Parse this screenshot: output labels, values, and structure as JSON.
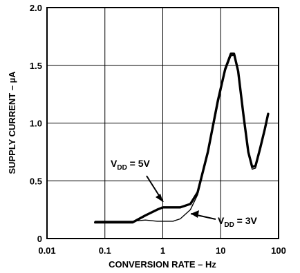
{
  "chart_data": {
    "type": "line",
    "xlabel": "CONVERSION RATE – Hz",
    "ylabel": "SUPPLY CURRENT – µA",
    "xscale": "log",
    "xlim": [
      0.01,
      100
    ],
    "ylim": [
      0,
      2.0
    ],
    "xticks": [
      "0.01",
      "0.1",
      "1",
      "10",
      "100"
    ],
    "yticks": [
      "0",
      "0.5",
      "1.0",
      "1.5",
      "2.0"
    ],
    "grid": true,
    "series": [
      {
        "name": "VDD = 5V",
        "x": [
          0.068,
          0.15,
          0.3,
          0.5,
          0.8,
          1.0,
          1.5,
          2.0,
          3.0,
          4.0,
          6.0,
          9.0,
          12.0,
          15.0,
          17.0,
          20.0,
          25.0,
          30.0,
          35.0,
          40.0,
          48.0,
          58.0,
          66.0
        ],
        "y": [
          0.14,
          0.14,
          0.14,
          0.2,
          0.25,
          0.27,
          0.27,
          0.27,
          0.3,
          0.4,
          0.75,
          1.2,
          1.47,
          1.6,
          1.6,
          1.45,
          1.05,
          0.75,
          0.62,
          0.63,
          0.78,
          0.95,
          1.08
        ],
        "label_parts": [
          "V",
          "DD",
          " = 5V"
        ]
      },
      {
        "name": "VDD = 3V",
        "x": [
          0.068,
          0.15,
          0.3,
          0.5,
          0.8,
          1.0,
          1.5,
          2.0,
          3.0,
          4.0,
          6.0,
          9.0,
          12.0,
          15.0,
          17.0,
          20.0,
          25.0,
          30.0,
          35.0,
          40.0,
          48.0,
          58.0,
          66.0
        ],
        "y": [
          0.15,
          0.15,
          0.15,
          0.16,
          0.15,
          0.15,
          0.15,
          0.17,
          0.25,
          0.38,
          0.73,
          1.17,
          1.45,
          1.58,
          1.59,
          1.44,
          1.03,
          0.73,
          0.6,
          0.61,
          0.76,
          0.93,
          1.06
        ],
        "label_parts": [
          "V",
          "DD",
          " = 3V"
        ]
      }
    ]
  }
}
